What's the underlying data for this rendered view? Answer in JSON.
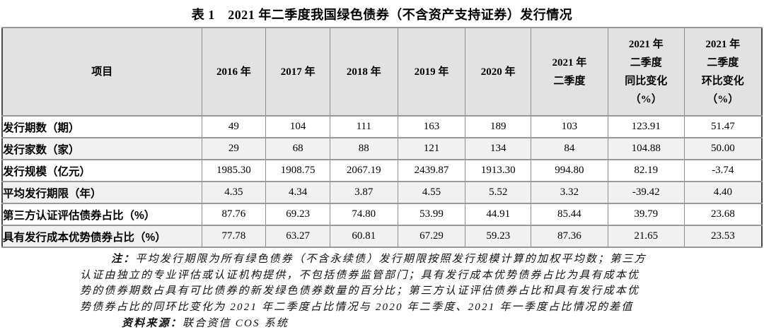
{
  "title": "表 1　2021 年二季度我国绿色债券（不含资产支持证券）发行情况",
  "table": {
    "columns": [
      "项目",
      "2016 年",
      "2017 年",
      "2018 年",
      "2019 年",
      "2020 年",
      "2021 年\n二季度",
      "2021 年\n二季度\n同比变化\n（%）",
      "2021 年\n二季度\n环比变化\n（%）"
    ],
    "rows": [
      {
        "label": "发行期数（期）",
        "values": [
          "49",
          "104",
          "111",
          "163",
          "189",
          "103",
          "123.91",
          "51.47"
        ]
      },
      {
        "label": "发行家数（家）",
        "values": [
          "29",
          "68",
          "88",
          "121",
          "134",
          "84",
          "104.88",
          "50.00"
        ]
      },
      {
        "label": "发行规模（亿元）",
        "values": [
          "1985.30",
          "1908.75",
          "2067.19",
          "2439.87",
          "1913.30",
          "994.80",
          "82.19",
          "-3.74"
        ]
      },
      {
        "label": "平均发行期限（年）",
        "values": [
          "4.35",
          "4.34",
          "3.87",
          "4.55",
          "5.52",
          "3.32",
          "-39.42",
          "4.40"
        ]
      },
      {
        "label": "第三方认证评估债券占比（%）",
        "values": [
          "87.76",
          "69.23",
          "74.80",
          "53.99",
          "44.91",
          "85.44",
          "39.79",
          "23.68"
        ]
      },
      {
        "label": "具有发行成本优势债券占比（%）",
        "values": [
          "77.78",
          "63.27",
          "60.81",
          "67.29",
          "59.23",
          "87.36",
          "21.65",
          "23.53"
        ]
      }
    ]
  },
  "notes": {
    "prefix": "注：",
    "line1": "平均发行期限为所有绿色债券（不含永续债）发行期限按照发行规模计算的加权平均数；第三方",
    "line2": "认证由独立的专业评估或认证机构提供，不包括债券监管部门；具有发行成本优势债券占比为具有成本优",
    "line3": "势的债券期数占具有可比债券的新发绿色债券数量的百分比；第三方认证评估债券占比和具有发行成本优",
    "line4": "势债券占比的同环比变化为 2021 年二季度占比情况与 2020 年二季度、2021 年一季度占比情况的差值"
  },
  "source": {
    "prefix": "资料来源：",
    "text": "联合资信 COS 系统"
  },
  "colors": {
    "header_bg": "#e2e2e2",
    "stripe_bg": "#f1f1f1",
    "grid_line": "#8f8f8f",
    "outer_border": "#4b4b4b"
  }
}
